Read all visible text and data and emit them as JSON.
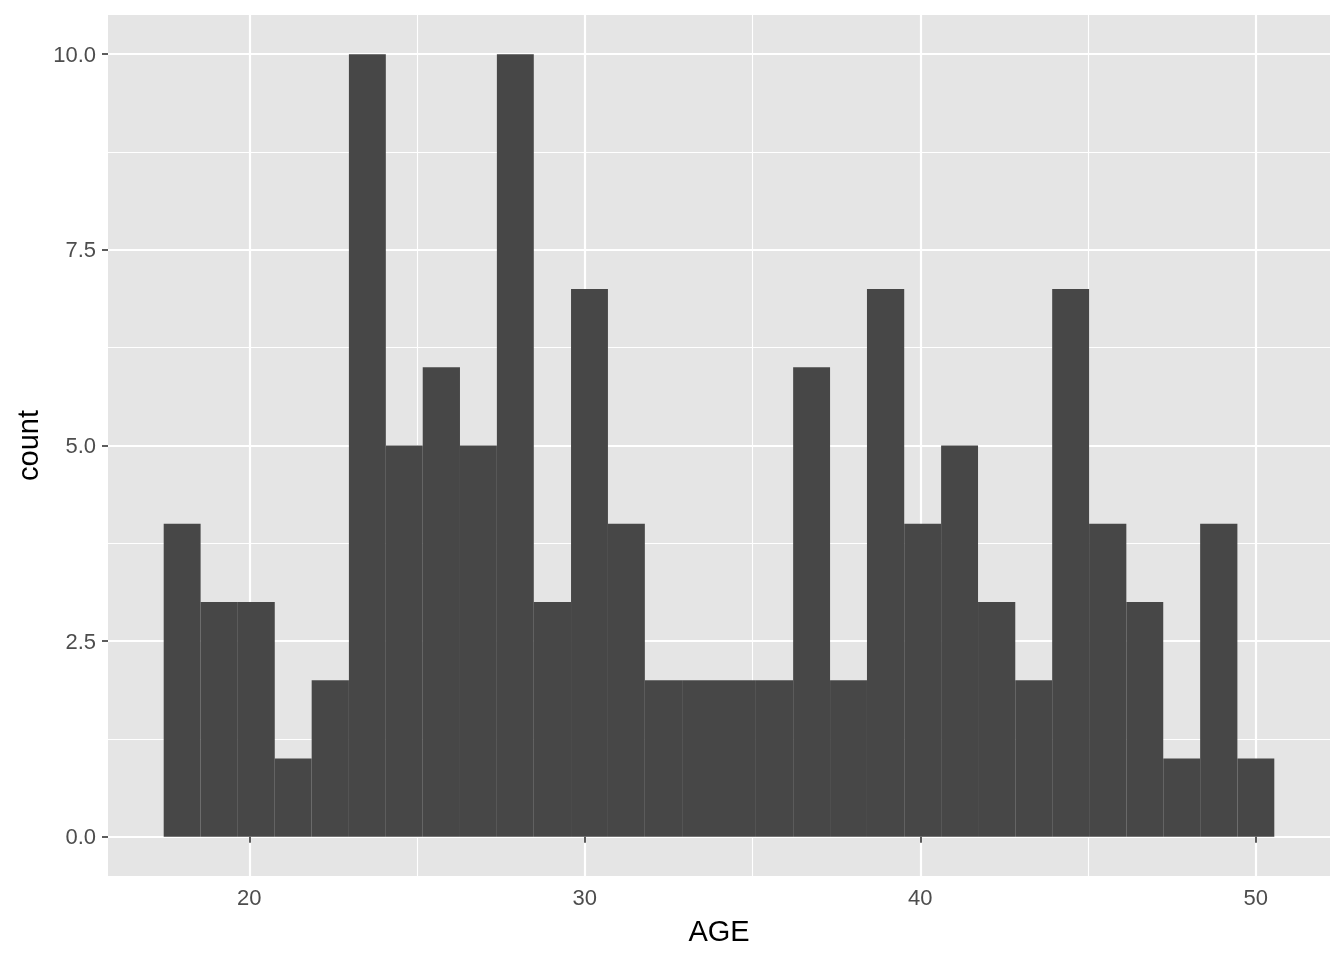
{
  "chart_data": {
    "type": "histogram",
    "xlabel": "AGE",
    "ylabel": "count",
    "color": "#474747",
    "bins": [
      17.45,
      18.55,
      19.66,
      20.76,
      21.86,
      22.97,
      24.07,
      25.17,
      26.28,
      27.38,
      28.48,
      29.59,
      30.69,
      31.79,
      32.9,
      34,
      35.1,
      36.21,
      37.31,
      38.41,
      39.52,
      40.62,
      41.72,
      42.83,
      43.93,
      45.03,
      46.14,
      47.24,
      48.34,
      49.45,
      50.55
    ],
    "values": [
      4,
      3,
      3,
      1,
      2,
      10,
      5,
      6,
      5,
      10,
      3,
      7,
      4,
      2,
      2,
      2,
      2,
      6,
      2,
      7,
      4,
      5,
      3,
      2,
      7,
      4,
      3,
      1,
      4,
      1
    ],
    "xlim": [
      15.79,
      52.21
    ],
    "xticks": [
      20,
      30,
      40,
      50
    ],
    "ylim": [
      -0.5,
      10.5
    ],
    "yticks": [
      {
        "value": 0,
        "label": "0.0"
      },
      {
        "value": 2.5,
        "label": "2.5"
      },
      {
        "value": 5,
        "label": "5.0"
      },
      {
        "value": 7.5,
        "label": "7.5"
      },
      {
        "value": 10,
        "label": "10.0"
      }
    ],
    "grid": true
  }
}
